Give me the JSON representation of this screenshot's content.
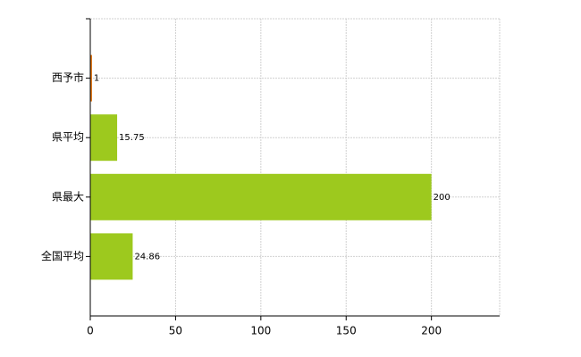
{
  "chart_data": {
    "type": "hbar",
    "categories": [
      "西予市",
      "県平均",
      "県最大",
      "全国平均"
    ],
    "values": [
      1,
      15.75,
      200,
      24.86
    ],
    "colors": [
      "#e0700a",
      "#9dc91e",
      "#9dc91e",
      "#9dc91e"
    ],
    "xlim": [
      0,
      240
    ],
    "xticks": [
      0,
      50,
      100,
      150,
      200
    ],
    "grid": true
  }
}
